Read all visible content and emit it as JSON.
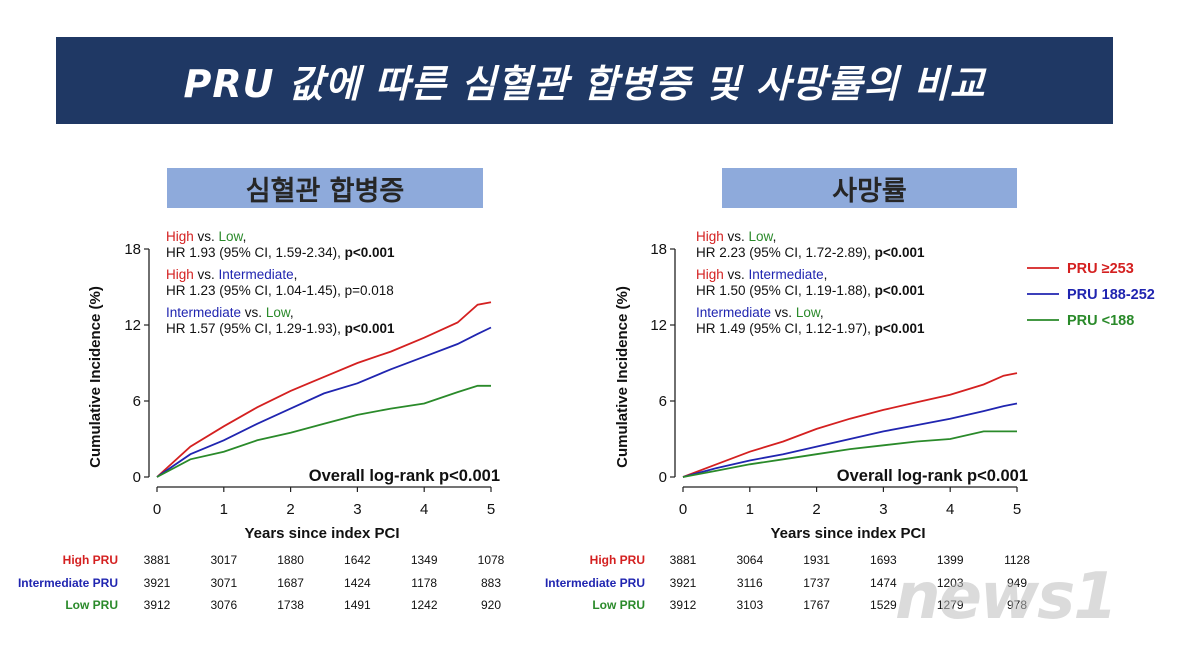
{
  "header": {
    "title": "PRU 값에 따른 심혈관 합병증 및 사망률의 비교"
  },
  "colors": {
    "high": "#d42020",
    "intermediate": "#2025b0",
    "low": "#2a8a2a",
    "banner": "#1f3864",
    "panel_title_bg": "#8eaadb"
  },
  "legend": {
    "items": [
      "PRU ≥253",
      "PRU 188-252",
      "PRU <188"
    ]
  },
  "watermark": "news1",
  "chart_data": [
    {
      "type": "line",
      "title": "심혈관 합병증",
      "xlabel": "Years since index PCI",
      "ylabel": "Cumulative Incidence (%)",
      "xlim": [
        0,
        5
      ],
      "ylim": [
        0,
        18
      ],
      "xticks": [
        "0",
        "1",
        "2",
        "3",
        "4",
        "5"
      ],
      "yticks": [
        "0",
        "6",
        "12",
        "18"
      ],
      "overall_text": "Overall log-rank p<0.001",
      "annotations": [
        {
          "a": "High",
          "mid": " vs. ",
          "b": "Low",
          "end": ",",
          "hr": "HR 1.93 (95% CI, 1.59-2.34), ",
          "p": "p<0.001",
          "p_bold": true,
          "a_color": "high",
          "b_color": "low"
        },
        {
          "a": "High",
          "mid": " vs. ",
          "b": "Intermediate",
          "end": ",",
          "hr": "HR 1.23 (95% CI, 1.04-1.45), ",
          "p": "p=0.018",
          "p_bold": false,
          "a_color": "high",
          "b_color": "intermediate"
        },
        {
          "a": "Intermediate",
          "mid": " vs. ",
          "b": "Low",
          "end": ",",
          "hr": "HR 1.57 (95% CI, 1.29-1.93), ",
          "p": "p<0.001",
          "p_bold": true,
          "a_color": "intermediate",
          "b_color": "low"
        }
      ],
      "x": [
        0,
        0.5,
        1,
        1.5,
        2,
        2.5,
        3,
        3.5,
        4,
        4.5,
        4.8,
        5
      ],
      "series": [
        {
          "name": "PRU ≥253",
          "color_key": "high",
          "values": [
            0,
            2.4,
            4.0,
            5.5,
            6.8,
            7.9,
            9.0,
            9.9,
            11.0,
            12.2,
            13.6,
            13.8
          ]
        },
        {
          "name": "PRU 188-252",
          "color_key": "intermediate",
          "values": [
            0,
            1.8,
            2.9,
            4.2,
            5.4,
            6.6,
            7.4,
            8.5,
            9.5,
            10.5,
            11.3,
            11.8
          ]
        },
        {
          "name": "PRU <188",
          "color_key": "low",
          "values": [
            0,
            1.4,
            2.0,
            2.9,
            3.5,
            4.2,
            4.9,
            5.4,
            5.8,
            6.7,
            7.2,
            7.2
          ]
        }
      ],
      "risk_table": {
        "rows": [
          {
            "label": "High PRU",
            "color_key": "high",
            "values": [
              "3881",
              "3017",
              "1880",
              "1642",
              "1349",
              "1078"
            ]
          },
          {
            "label": "Intermediate PRU",
            "color_key": "intermediate",
            "values": [
              "3921",
              "3071",
              "1687",
              "1424",
              "1178",
              "883"
            ]
          },
          {
            "label": "Low PRU",
            "color_key": "low",
            "values": [
              "3912",
              "3076",
              "1738",
              "1491",
              "1242",
              "920"
            ]
          }
        ]
      }
    },
    {
      "type": "line",
      "title": "사망률",
      "xlabel": "Years since index PCI",
      "ylabel": "Cumulative Incidence (%)",
      "xlim": [
        0,
        5
      ],
      "ylim": [
        0,
        18
      ],
      "xticks": [
        "0",
        "1",
        "2",
        "3",
        "4",
        "5"
      ],
      "yticks": [
        "0",
        "6",
        "12",
        "18"
      ],
      "overall_text": "Overall log-rank p<0.001",
      "annotations": [
        {
          "a": "High",
          "mid": " vs. ",
          "b": "Low",
          "end": ",",
          "hr": "HR 2.23 (95% CI, 1.72-2.89), ",
          "p": "p<0.001",
          "p_bold": true,
          "a_color": "high",
          "b_color": "low"
        },
        {
          "a": "High",
          "mid": " vs. ",
          "b": "Intermediate",
          "end": ",",
          "hr": "HR 1.50 (95% CI, 1.19-1.88), ",
          "p": "p<0.001",
          "p_bold": true,
          "a_color": "high",
          "b_color": "intermediate"
        },
        {
          "a": "Intermediate",
          "mid": " vs. ",
          "b": "Low",
          "end": ",",
          "hr": "HR 1.49 (95% CI, 1.12-1.97), ",
          "p": "p<0.001",
          "p_bold": true,
          "a_color": "intermediate",
          "b_color": "low"
        }
      ],
      "x": [
        0,
        0.5,
        1,
        1.5,
        2,
        2.5,
        3,
        3.5,
        4,
        4.5,
        4.8,
        5
      ],
      "series": [
        {
          "name": "PRU ≥253",
          "color_key": "high",
          "values": [
            0,
            1.0,
            2.0,
            2.8,
            3.8,
            4.6,
            5.3,
            5.9,
            6.5,
            7.3,
            8.0,
            8.2
          ]
        },
        {
          "name": "PRU 188-252",
          "color_key": "intermediate",
          "values": [
            0,
            0.7,
            1.3,
            1.8,
            2.4,
            3.0,
            3.6,
            4.1,
            4.6,
            5.2,
            5.6,
            5.8
          ]
        },
        {
          "name": "PRU <188",
          "color_key": "low",
          "values": [
            0,
            0.5,
            1.0,
            1.4,
            1.8,
            2.2,
            2.5,
            2.8,
            3.0,
            3.6,
            3.6,
            3.6
          ]
        }
      ],
      "risk_table": {
        "rows": [
          {
            "label": "High PRU",
            "color_key": "high",
            "values": [
              "3881",
              "3064",
              "1931",
              "1693",
              "1399",
              "1128"
            ]
          },
          {
            "label": "Intermediate PRU",
            "color_key": "intermediate",
            "values": [
              "3921",
              "3116",
              "1737",
              "1474",
              "1203",
              "949"
            ]
          },
          {
            "label": "Low PRU",
            "color_key": "low",
            "values": [
              "3912",
              "3103",
              "1767",
              "1529",
              "1279",
              "978"
            ]
          }
        ]
      }
    }
  ]
}
